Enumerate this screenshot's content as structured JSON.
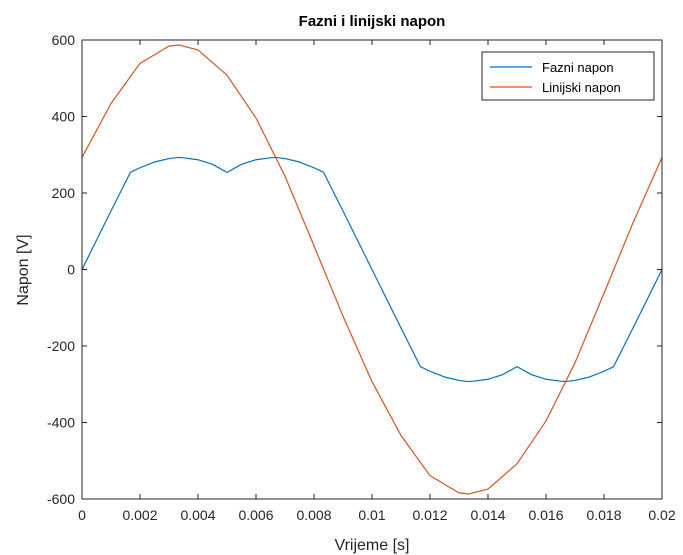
{
  "chart_data": {
    "type": "line",
    "title": "Fazni i linijski napon",
    "xlabel": "Vrijeme [s]",
    "ylabel": "Napon [V]",
    "xlim": [
      0,
      0.02
    ],
    "ylim": [
      -600,
      600
    ],
    "grid": false,
    "legend_position": "top-right",
    "x_ticks": [
      0,
      0.002,
      0.004,
      0.006,
      0.008,
      0.01,
      0.012,
      0.014,
      0.016,
      0.018,
      0.02
    ],
    "x_tick_labels": [
      "0",
      "0.002",
      "0.004",
      "0.006",
      "0.008",
      "0.01",
      "0.012",
      "0.014",
      "0.016",
      "0.018",
      "0.02"
    ],
    "y_ticks": [
      -600,
      -400,
      -200,
      0,
      200,
      400,
      600
    ],
    "y_tick_labels": [
      "-600",
      "-400",
      "-200",
      "0",
      "200",
      "400",
      "600"
    ],
    "series": [
      {
        "name": "Fazni napon",
        "color": "#0072BD",
        "x": [
          0,
          0.001,
          0.00167,
          0.002,
          0.0025,
          0.003,
          0.00333,
          0.0035,
          0.004,
          0.0045,
          0.005,
          0.0055,
          0.006,
          0.0065,
          0.00667,
          0.007,
          0.0075,
          0.008,
          0.00833,
          0.009,
          0.01,
          0.011,
          0.01167,
          0.012,
          0.0125,
          0.013,
          0.01333,
          0.0135,
          0.014,
          0.0145,
          0.015,
          0.0155,
          0.016,
          0.0165,
          0.01667,
          0.017,
          0.0175,
          0.018,
          0.01833,
          0.019,
          0.02
        ],
        "values": [
          0,
          153,
          254,
          266,
          281,
          290,
          293,
          292,
          287,
          275,
          254,
          275,
          287,
          292,
          293,
          290,
          281,
          266,
          254,
          153,
          0,
          -153,
          -254,
          -266,
          -281,
          -290,
          -293,
          -292,
          -287,
          -275,
          -254,
          -275,
          -287,
          -292,
          -293,
          -290,
          -281,
          -266,
          -254,
          -153,
          0
        ]
      },
      {
        "name": "Linijski napon",
        "color": "#D95319",
        "x": [
          0,
          0.001,
          0.002,
          0.003,
          0.00333,
          0.004,
          0.005,
          0.006,
          0.007,
          0.008,
          0.009,
          0.01,
          0.011,
          0.012,
          0.013,
          0.01333,
          0.014,
          0.015,
          0.016,
          0.017,
          0.018,
          0.019,
          0.02
        ],
        "values": [
          293,
          434,
          539,
          584,
          587,
          574,
          508,
          396,
          244,
          62,
          -122,
          -293,
          -434,
          -539,
          -584,
          -587,
          -574,
          -508,
          -396,
          -244,
          -62,
          122,
          293
        ]
      }
    ]
  }
}
